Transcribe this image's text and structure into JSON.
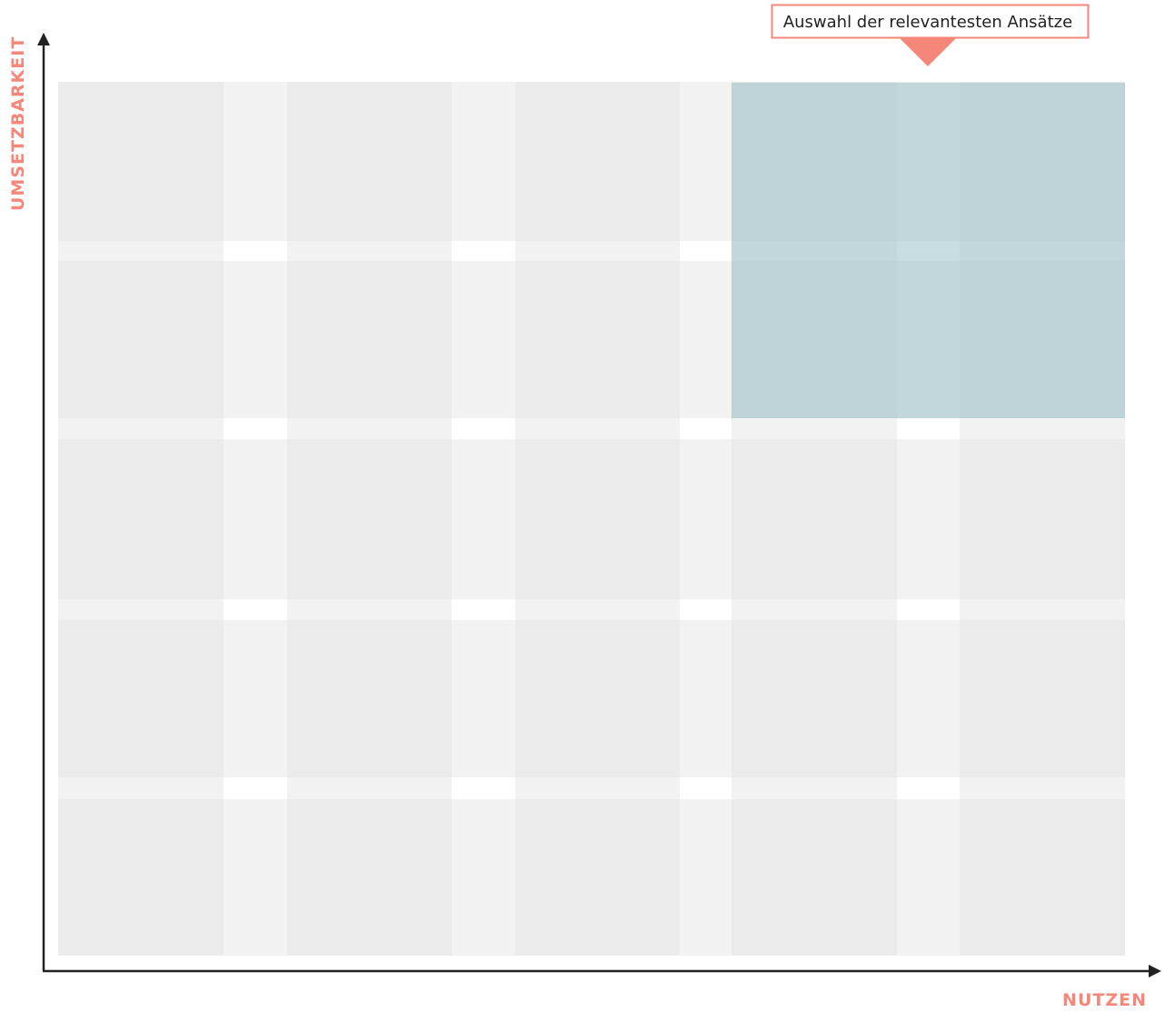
{
  "axes": {
    "y_label": "UMSETZBARKEIT",
    "x_label": "NUTZEN"
  },
  "callout": {
    "text": "Auswahl der relevantesten Ansätze"
  }
}
